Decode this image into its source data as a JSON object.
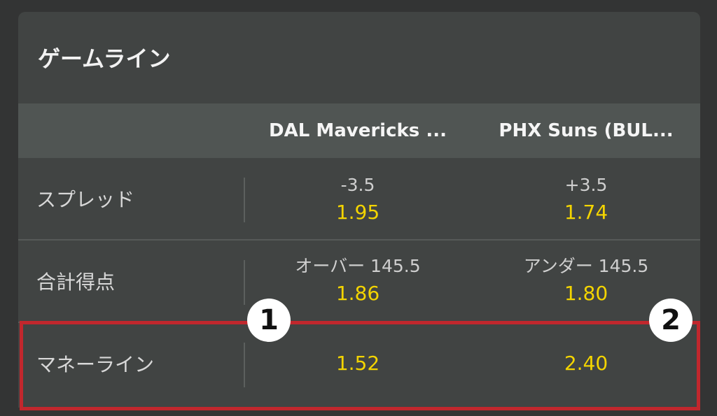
{
  "title": "ゲームライン",
  "columns": [
    "DAL Mavericks ...",
    "PHX Suns (BUL..."
  ],
  "rows": [
    {
      "label": "スプレッド",
      "cells": [
        {
          "line": "-3.5",
          "odds": "1.95"
        },
        {
          "line": "+3.5",
          "odds": "1.74"
        }
      ]
    },
    {
      "label": "合計得点",
      "cells": [
        {
          "line": "オーバー 145.5",
          "odds": "1.86"
        },
        {
          "line": "アンダー 145.5",
          "odds": "1.80"
        }
      ]
    },
    {
      "label": "マネーライン",
      "cells": [
        {
          "odds": "1.52"
        },
        {
          "odds": "2.40"
        }
      ]
    }
  ],
  "annotations": [
    "1",
    "2"
  ],
  "colors": {
    "odds": "#f3d400",
    "highlight": "#c1272d"
  }
}
